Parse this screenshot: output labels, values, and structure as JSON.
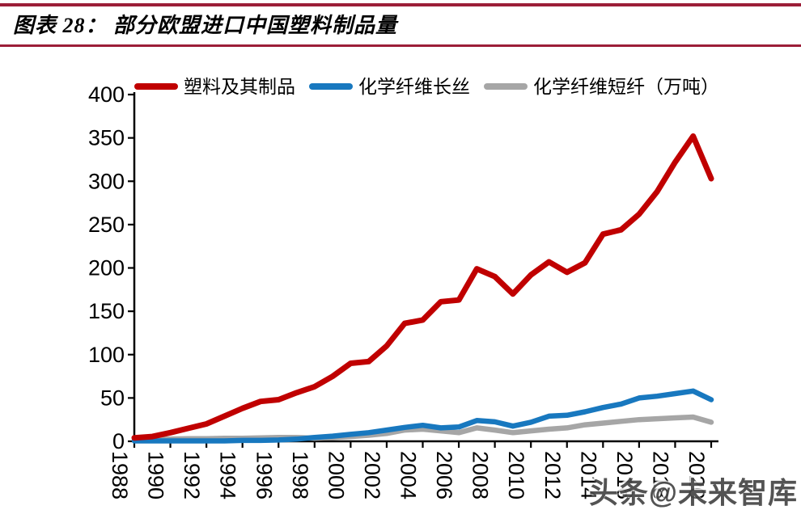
{
  "header": {
    "title": "图表 28： 部分欧盟进口中国塑料制品量"
  },
  "watermark": {
    "text": "头条@未来智库"
  },
  "colors": {
    "rule": "#9C1E38",
    "axis": "#000000",
    "series_red": "#C00000",
    "series_blue": "#1878BF",
    "series_gray": "#A6A6A6"
  },
  "chart_data": {
    "type": "line",
    "title": "图表 28： 部分欧盟进口中国塑料制品量",
    "xlabel": "",
    "ylabel": "",
    "unit": "万吨",
    "ylim": [
      0,
      400
    ],
    "yticks": [
      0,
      50,
      100,
      150,
      200,
      250,
      300,
      350,
      400
    ],
    "xtick_step": 2,
    "grid": false,
    "legend_position": "top",
    "x": [
      1988,
      1989,
      1990,
      1991,
      1992,
      1993,
      1994,
      1995,
      1996,
      1997,
      1998,
      1999,
      2000,
      2001,
      2002,
      2003,
      2004,
      2005,
      2006,
      2007,
      2008,
      2009,
      2010,
      2011,
      2012,
      2013,
      2014,
      2015,
      2016,
      2017,
      2018,
      2019,
      2020
    ],
    "series": [
      {
        "name": "塑料及其制品",
        "color": "#C00000",
        "line_width": 7,
        "values": [
          4,
          5.5,
          10,
          15,
          20,
          29,
          38,
          46,
          48,
          56,
          63,
          75,
          90,
          92,
          110,
          136,
          140,
          161,
          163,
          199,
          190,
          170,
          192,
          207,
          195,
          206,
          239,
          244,
          262,
          288,
          322,
          352,
          303
        ]
      },
      {
        "name": "化学纤维长丝",
        "color": "#1878BF",
        "line_width": 6.5,
        "values": [
          0.5,
          0.5,
          0.5,
          0.5,
          0.5,
          0.5,
          1,
          1,
          1.5,
          2.5,
          4.5,
          6,
          8,
          10,
          13,
          16,
          18.5,
          15.5,
          16.5,
          24,
          22.5,
          17.5,
          22,
          29,
          30,
          34,
          39,
          43,
          50,
          52,
          55,
          58,
          48
        ]
      },
      {
        "name": "化学纤维短纤（万吨）",
        "color": "#A6A6A6",
        "line_width": 6.5,
        "values": [
          1.5,
          2,
          2.5,
          3,
          3,
          3.5,
          3.5,
          4,
          4.5,
          4.5,
          3.5,
          4.5,
          5.5,
          7,
          9,
          13,
          14,
          12,
          10,
          15.5,
          13,
          10,
          12,
          14,
          15.5,
          19,
          21,
          23,
          25,
          26,
          27,
          28,
          22
        ]
      }
    ]
  }
}
